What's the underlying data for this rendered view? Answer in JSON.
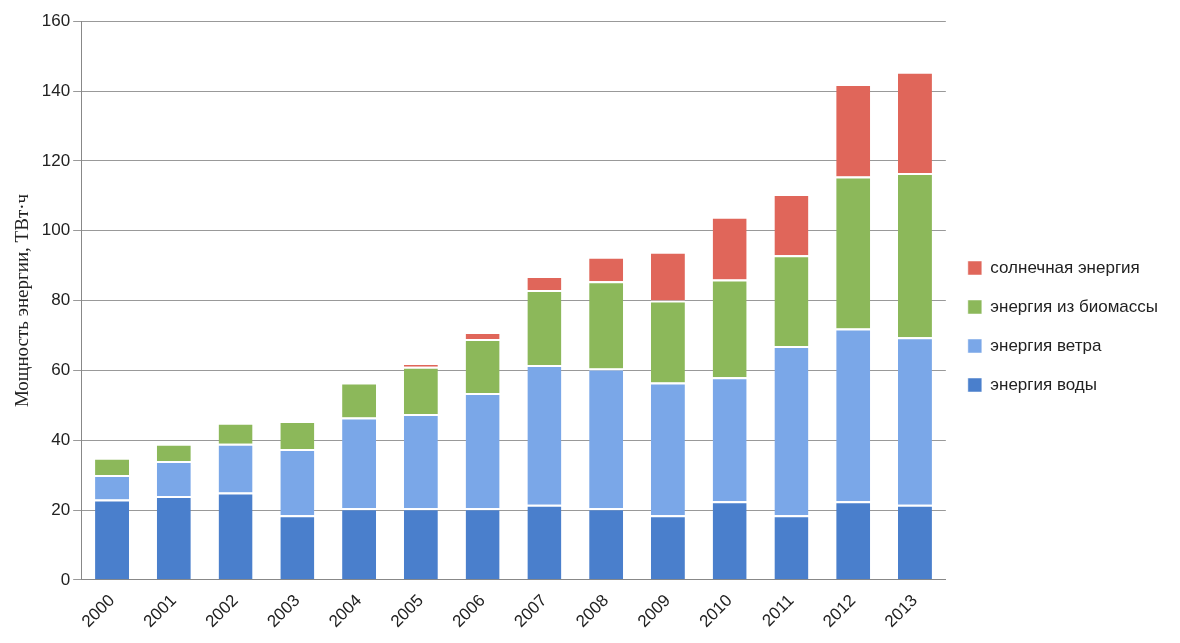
{
  "chart_data": {
    "type": "bar",
    "stacked": true,
    "ylabel": "Мощность энергии, ТВт·ч",
    "categories": [
      "2000",
      "2001",
      "2002",
      "2003",
      "2004",
      "2005",
      "2006",
      "2007",
      "2008",
      "2009",
      "2010",
      "2011",
      "2012",
      "2013"
    ],
    "series": [
      {
        "name": "энергия воды",
        "color": "#4a7fcc",
        "values": [
          23,
          24,
          25,
          18.5,
          20.5,
          20.5,
          20.5,
          21.5,
          20.5,
          18.5,
          22.5,
          18.5,
          22.5,
          21.5
        ]
      },
      {
        "name": "энергия ветра",
        "color": "#7aa7e8",
        "values": [
          7,
          10,
          14,
          19,
          26,
          27,
          33,
          40,
          40,
          38,
          35.5,
          48.5,
          49.5,
          48
        ]
      },
      {
        "name": "энергия из биомассы",
        "color": "#8cb85a",
        "values": [
          5,
          5,
          6,
          8,
          10,
          13.5,
          15.5,
          21.5,
          25,
          23.5,
          28,
          26,
          43.5,
          47
        ]
      },
      {
        "name": "солнечная энергия",
        "color": "#e0665a",
        "values": [
          0,
          0,
          0,
          0,
          0,
          1,
          2,
          4,
          7,
          14,
          18,
          17.5,
          26.5,
          29
        ]
      }
    ],
    "ylim": [
      0,
      160
    ],
    "yticks": [
      0,
      20,
      40,
      60,
      80,
      100,
      120,
      140,
      160
    ],
    "grid": "y",
    "legend": "right"
  }
}
